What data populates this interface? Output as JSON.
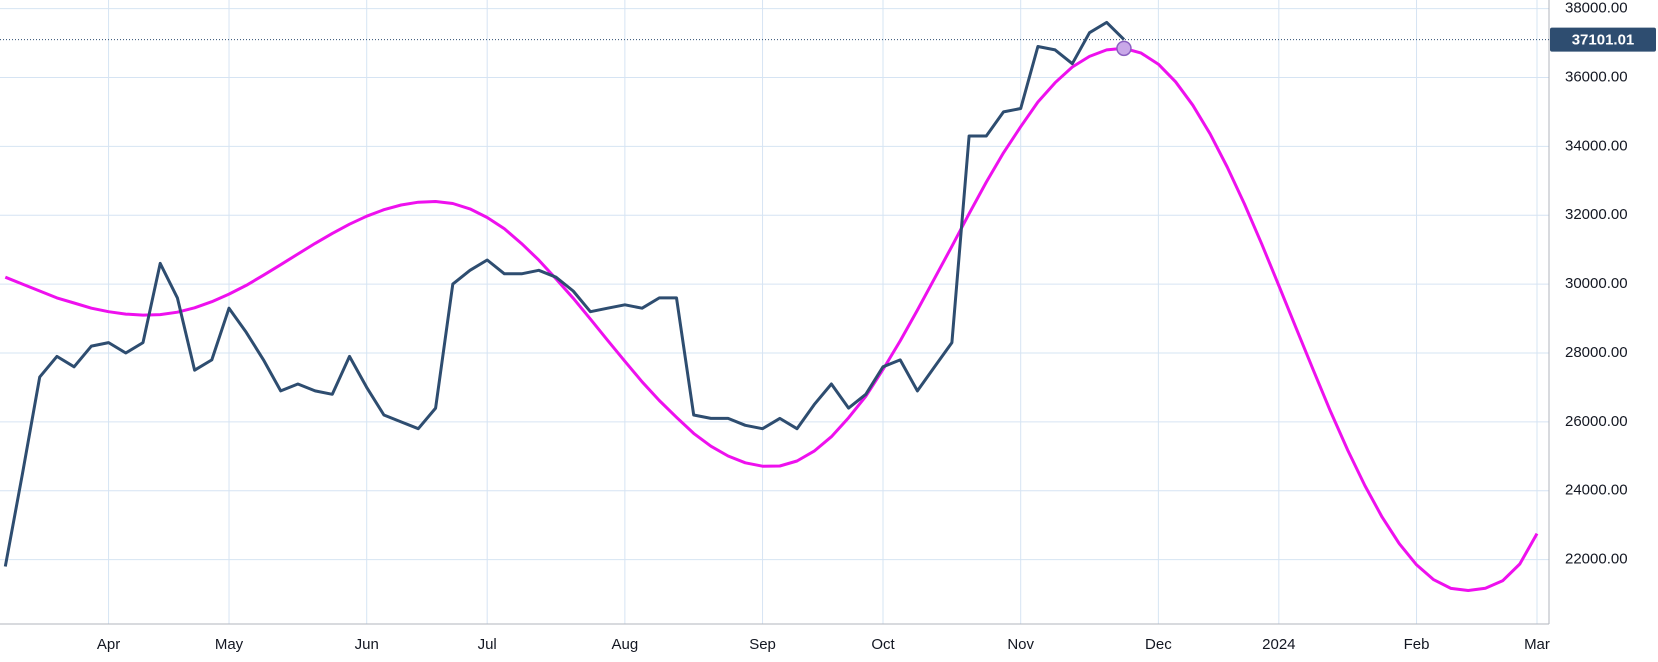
{
  "chart_data": {
    "type": "line",
    "categories": [
      null,
      null,
      null,
      null,
      null,
      null,
      "Apr",
      null,
      null,
      null,
      null,
      null,
      null,
      "May",
      null,
      null,
      null,
      null,
      null,
      null,
      null,
      "Jun",
      null,
      null,
      null,
      null,
      null,
      null,
      "Jul",
      null,
      null,
      null,
      null,
      null,
      null,
      null,
      "Aug",
      null,
      null,
      null,
      null,
      null,
      null,
      null,
      "Sep",
      null,
      null,
      null,
      null,
      null,
      null,
      "Oct",
      null,
      null,
      null,
      null,
      null,
      null,
      null,
      "Nov",
      null,
      null,
      null,
      null,
      null,
      null,
      null,
      "Dec",
      null,
      null,
      null,
      null,
      null,
      null,
      "2024",
      null,
      null,
      null,
      null,
      null,
      null,
      null,
      "Feb",
      null,
      null,
      null,
      null,
      null,
      null,
      "Mar"
    ],
    "series": [
      {
        "color": "#2e4d70",
        "values": [
          21800,
          24500,
          27300,
          27900,
          27600,
          28200,
          28300,
          28000,
          28300,
          30600,
          29600,
          27500,
          27800,
          29300,
          28600,
          27800,
          26900,
          27100,
          26900,
          26800,
          27900,
          27000,
          26200,
          26000,
          25800,
          26400,
          30000,
          30400,
          30700,
          30300,
          30300,
          30400,
          30200,
          29800,
          29200,
          29300,
          29400,
          29300,
          29600,
          29600,
          26200,
          26100,
          26100,
          25900,
          25800,
          26100,
          25800,
          26500,
          27100,
          26400,
          26800,
          27600,
          27800,
          26900,
          27600,
          28300,
          34300,
          34300,
          35000,
          35100,
          36900,
          36800,
          36400,
          37300,
          37600,
          37101.01,
          null,
          null,
          null,
          null,
          null,
          null,
          null,
          null,
          null,
          null,
          null,
          null,
          null,
          null,
          null,
          null,
          null,
          null,
          null,
          null,
          null,
          null,
          null,
          null
        ]
      },
      {
        "color": "#ee10ee",
        "values": [
          30200,
          30000,
          29800,
          29600,
          29450,
          29300,
          29200,
          29130,
          29100,
          29115,
          29184,
          29311,
          29488,
          29710,
          29963,
          30260,
          30564,
          30874,
          31182,
          31473,
          31740,
          31973,
          32161,
          32298,
          32377,
          32400,
          32342,
          32184,
          31934,
          31607,
          31176,
          30698,
          30155,
          29590,
          28985,
          28369,
          27757,
          27164,
          26621,
          26132,
          25666,
          25293,
          25008,
          24812,
          24712,
          24718,
          24864,
          25150,
          25569,
          26122,
          26741,
          27519,
          28351,
          29244,
          30168,
          31097,
          32045,
          32962,
          33813,
          34572,
          35289,
          35848,
          36303,
          36613,
          36801,
          36846,
          36708,
          36385,
          35874,
          35196,
          34369,
          33401,
          32330,
          31172,
          29959,
          28731,
          27502,
          26305,
          25179,
          24148,
          23234,
          22462,
          21848,
          21415,
          21163,
          21104,
          21166,
          21385,
          21871,
          22754
        ]
      }
    ],
    "ylim": [
      20130,
      38250
    ],
    "yticks": [
      {
        "value": 22000,
        "label": "22000.00"
      },
      {
        "value": 24000,
        "label": "24000.00"
      },
      {
        "value": 26000,
        "label": "26000.00"
      },
      {
        "value": 28000,
        "label": "28000.00"
      },
      {
        "value": 30000,
        "label": "30000.00"
      },
      {
        "value": 32000,
        "label": "32000.00"
      },
      {
        "value": 34000,
        "label": "34000.00"
      },
      {
        "value": 36000,
        "label": "36000.00"
      },
      {
        "value": 38000,
        "label": "38000.00"
      }
    ],
    "grid": true
  }
}
